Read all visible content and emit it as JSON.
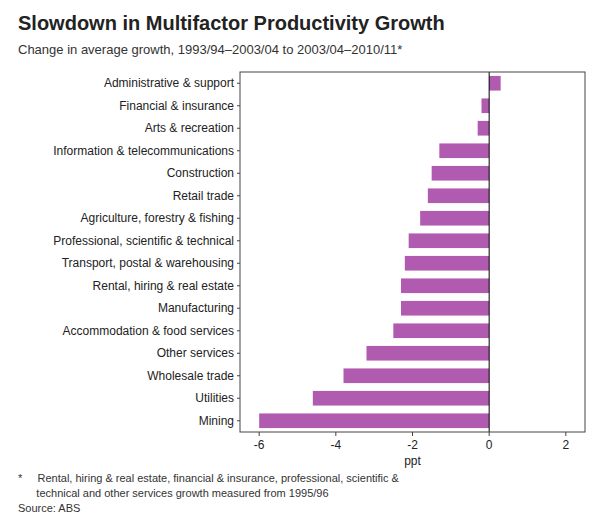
{
  "chart_data": {
    "type": "bar",
    "orientation": "horizontal",
    "title": "Slowdown in Multifactor Productivity Growth",
    "subtitle": "Change in average growth, 1993/94–2003/04 to 2003/04–2010/11*",
    "categories": [
      "Administrative & support",
      "Financial & insurance",
      "Arts & recreation",
      "Information & telecommunications",
      "Construction",
      "Retail trade",
      "Agriculture, forestry & fishing",
      "Professional, scientific & technical",
      "Transport, postal & warehousing",
      "Rental, hiring & real estate",
      "Manufacturing",
      "Accommodation & food services",
      "Other services",
      "Wholesale trade",
      "Utilities",
      "Mining"
    ],
    "values": [
      0.3,
      -0.2,
      -0.3,
      -1.3,
      -1.5,
      -1.6,
      -1.8,
      -2.1,
      -2.2,
      -2.3,
      -2.3,
      -2.5,
      -3.2,
      -3.8,
      -4.6,
      -6.0
    ],
    "color": "#b05ab0",
    "xlim": [
      -6.5,
      2.5
    ],
    "xticks": [
      -6,
      -4,
      -2,
      0,
      2
    ],
    "xlabel": "ppt",
    "grid": false,
    "annotations": [
      "*     Rental, hiring & real estate, financial & insurance, professional, scientific &",
      "      technical and other services growth measured from 1995/96",
      "Source: ABS"
    ]
  }
}
